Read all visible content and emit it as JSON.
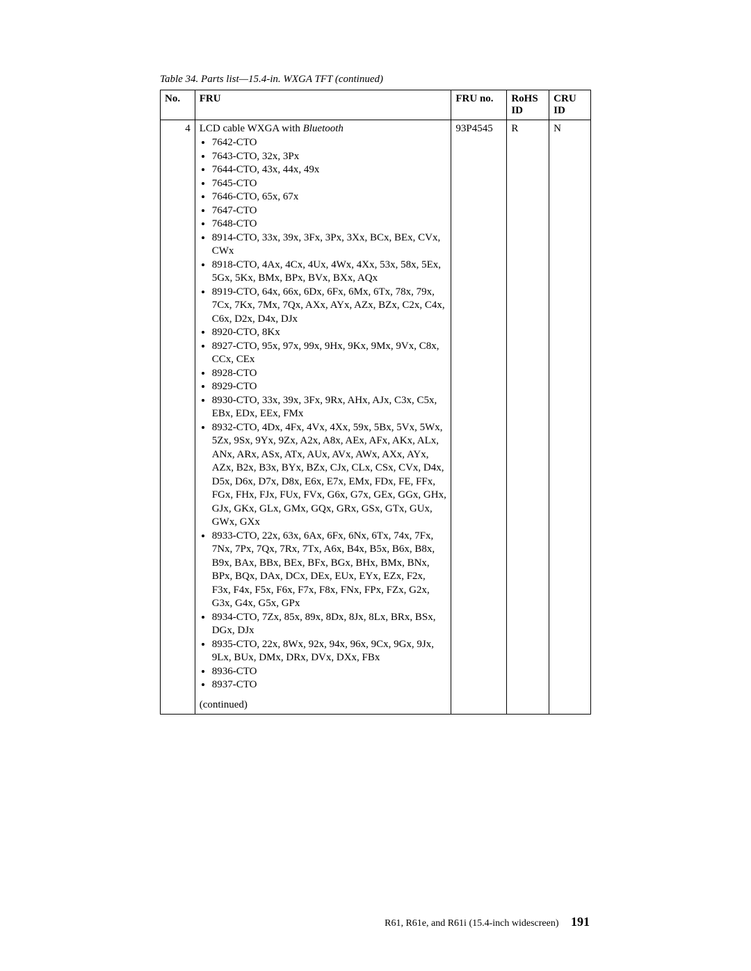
{
  "caption": "Table 34. Parts list—15.4-in. WXGA TFT  (continued)",
  "headers": {
    "no": "No.",
    "fru": "FRU",
    "fruno": "FRU no.",
    "rohs1": "RoHS",
    "rohs2": "ID",
    "cru1": "CRU",
    "cru2": "ID"
  },
  "row": {
    "no": "4",
    "title_pre": "LCD cable WXGA with ",
    "title_em": "Bluetooth",
    "fruno": "93P4545",
    "rohs": "R",
    "cru": "N",
    "bullets": [
      "7642-CTO",
      "7643-CTO, 32x, 3Px",
      "7644-CTO, 43x, 44x, 49x",
      "7645-CTO",
      "7646-CTO, 65x, 67x",
      "7647-CTO",
      "7648-CTO",
      "8914-CTO, 33x, 39x, 3Fx, 3Px, 3Xx, BCx, BEx, CVx, CWx",
      "8918-CTO, 4Ax, 4Cx, 4Ux, 4Wx, 4Xx, 53x, 58x, 5Ex, 5Gx, 5Kx, BMx, BPx, BVx, BXx, AQx",
      "8919-CTO, 64x, 66x, 6Dx, 6Fx, 6Mx, 6Tx, 78x, 79x, 7Cx, 7Kx, 7Mx, 7Qx, AXx, AYx, AZx, BZx, C2x, C4x, C6x, D2x, D4x, DJx",
      "8920-CTO, 8Kx",
      "8927-CTO, 95x, 97x, 99x, 9Hx, 9Kx, 9Mx, 9Vx, C8x, CCx, CEx",
      "8928-CTO",
      "8929-CTO",
      "8930-CTO, 33x, 39x, 3Fx, 9Rx, AHx, AJx, C3x, C5x, EBx, EDx, EEx, FMx",
      "8932-CTO, 4Dx, 4Fx, 4Vx, 4Xx, 59x, 5Bx, 5Vx, 5Wx, 5Zx, 9Sx, 9Yx, 9Zx, A2x, A8x, AEx, AFx, AKx, ALx, ANx, ARx, ASx, ATx, AUx, AVx, AWx, AXx, AYx, AZx, B2x, B3x, BYx, BZx, CJx, CLx, CSx, CVx, D4x, D5x, D6x, D7x, D8x, E6x, E7x, EMx, FDx, FE, FFx, FGx, FHx, FJx, FUx, FVx, G6x, G7x, GEx, GGx, GHx, GJx, GKx, GLx, GMx, GQx, GRx, GSx, GTx, GUx, GWx, GXx",
      "8933-CTO, 22x, 63x, 6Ax, 6Fx, 6Nx, 6Tx, 74x, 7Fx, 7Nx, 7Px, 7Qx, 7Rx, 7Tx, A6x, B4x, B5x, B6x, B8x, B9x, BAx, BBx, BEx, BFx, BGx, BHx, BMx, BNx, BPx, BQx, DAx, DCx, DEx, EUx, EYx, EZx, F2x, F3x, F4x, F5x, F6x, F7x, F8x, FNx, FPx, FZx, G2x, G3x, G4x, G5x, GPx",
      "8934-CTO, 7Zx, 85x, 89x, 8Dx, 8Jx, 8Lx, BRx, BSx, DGx, DJx",
      "8935-CTO, 22x, 8Wx, 92x, 94x, 96x, 9Cx, 9Gx, 9Jx, 9Lx, BUx, DMx, DRx, DVx, DXx, FBx",
      "8936-CTO",
      "8937-CTO"
    ],
    "continued": "(continued)"
  },
  "footer": {
    "text": "R61, R61e, and R61i (15.4-inch widescreen)",
    "pagenum": "191"
  }
}
